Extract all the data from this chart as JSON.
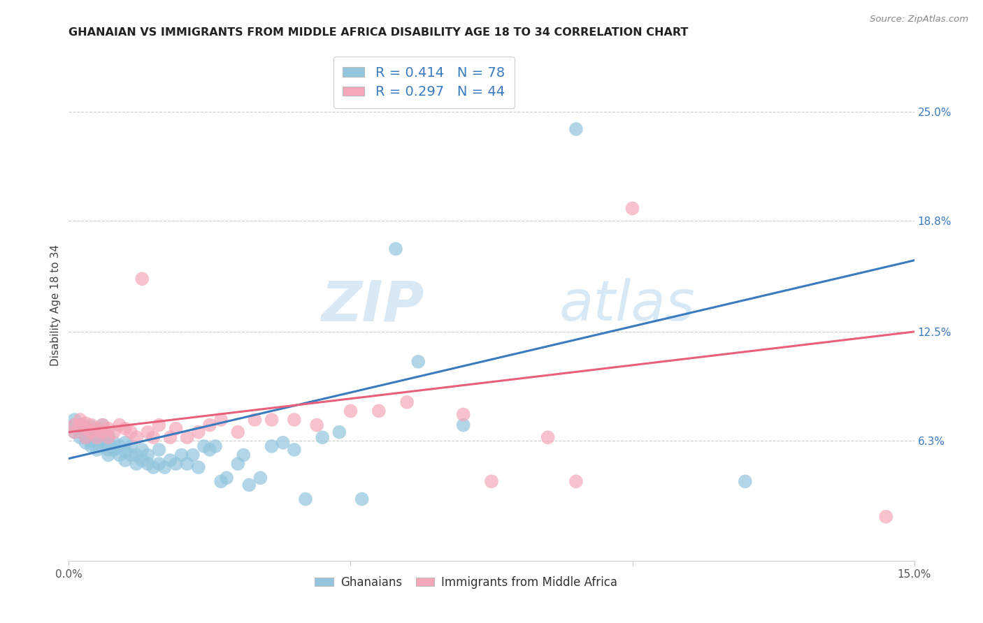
{
  "title": "GHANAIAN VS IMMIGRANTS FROM MIDDLE AFRICA DISABILITY AGE 18 TO 34 CORRELATION CHART",
  "source": "Source: ZipAtlas.com",
  "ylabel": "Disability Age 18 to 34",
  "ytick_labels": [
    "6.3%",
    "12.5%",
    "18.8%",
    "25.0%"
  ],
  "ytick_values": [
    0.063,
    0.125,
    0.188,
    0.25
  ],
  "xlim": [
    0.0,
    0.15
  ],
  "ylim": [
    -0.005,
    0.285
  ],
  "legend_r1": "R = 0.414   N = 78",
  "legend_r2": "R = 0.297   N = 44",
  "watermark_zip": "ZIP",
  "watermark_atlas": "atlas",
  "blue_color": "#92c5de",
  "pink_color": "#f4a7b9",
  "line_blue": "#3a7abf",
  "line_pink": "#e8607a",
  "blue_scatter_alpha": 0.7,
  "pink_scatter_alpha": 0.7,
  "ghanaians_x": [
    0.001,
    0.001,
    0.001,
    0.002,
    0.002,
    0.002,
    0.002,
    0.003,
    0.003,
    0.003,
    0.003,
    0.003,
    0.003,
    0.004,
    0.004,
    0.004,
    0.004,
    0.004,
    0.005,
    0.005,
    0.005,
    0.005,
    0.005,
    0.006,
    0.006,
    0.006,
    0.006,
    0.007,
    0.007,
    0.007,
    0.007,
    0.008,
    0.008,
    0.008,
    0.009,
    0.009,
    0.01,
    0.01,
    0.01,
    0.011,
    0.011,
    0.012,
    0.012,
    0.013,
    0.013,
    0.014,
    0.014,
    0.015,
    0.016,
    0.016,
    0.017,
    0.018,
    0.019,
    0.02,
    0.021,
    0.022,
    0.023,
    0.024,
    0.025,
    0.026,
    0.027,
    0.028,
    0.03,
    0.031,
    0.032,
    0.034,
    0.036,
    0.038,
    0.04,
    0.042,
    0.045,
    0.048,
    0.052,
    0.058,
    0.062,
    0.07,
    0.09,
    0.12
  ],
  "ghanaians_y": [
    0.072,
    0.068,
    0.075,
    0.065,
    0.07,
    0.072,
    0.068,
    0.065,
    0.068,
    0.07,
    0.062,
    0.065,
    0.067,
    0.06,
    0.063,
    0.067,
    0.071,
    0.068,
    0.058,
    0.062,
    0.066,
    0.07,
    0.068,
    0.06,
    0.064,
    0.068,
    0.072,
    0.058,
    0.062,
    0.066,
    0.055,
    0.058,
    0.062,
    0.058,
    0.055,
    0.06,
    0.052,
    0.057,
    0.062,
    0.055,
    0.06,
    0.05,
    0.055,
    0.052,
    0.058,
    0.05,
    0.055,
    0.048,
    0.05,
    0.058,
    0.048,
    0.052,
    0.05,
    0.055,
    0.05,
    0.055,
    0.048,
    0.06,
    0.058,
    0.06,
    0.04,
    0.042,
    0.05,
    0.055,
    0.038,
    0.042,
    0.06,
    0.062,
    0.058,
    0.03,
    0.065,
    0.068,
    0.03,
    0.172,
    0.108,
    0.072,
    0.24,
    0.04
  ],
  "immigrants_x": [
    0.001,
    0.001,
    0.002,
    0.002,
    0.003,
    0.003,
    0.003,
    0.004,
    0.004,
    0.005,
    0.005,
    0.006,
    0.006,
    0.007,
    0.007,
    0.008,
    0.009,
    0.01,
    0.011,
    0.012,
    0.013,
    0.014,
    0.015,
    0.016,
    0.018,
    0.019,
    0.021,
    0.023,
    0.025,
    0.027,
    0.03,
    0.033,
    0.036,
    0.04,
    0.044,
    0.05,
    0.055,
    0.06,
    0.07,
    0.075,
    0.085,
    0.09,
    0.1,
    0.145
  ],
  "immigrants_y": [
    0.072,
    0.068,
    0.075,
    0.072,
    0.065,
    0.07,
    0.073,
    0.068,
    0.072,
    0.065,
    0.07,
    0.068,
    0.072,
    0.065,
    0.07,
    0.068,
    0.072,
    0.07,
    0.068,
    0.065,
    0.155,
    0.068,
    0.065,
    0.072,
    0.065,
    0.07,
    0.065,
    0.068,
    0.072,
    0.075,
    0.068,
    0.075,
    0.075,
    0.075,
    0.072,
    0.08,
    0.08,
    0.085,
    0.078,
    0.04,
    0.065,
    0.04,
    0.195,
    0.02
  ]
}
